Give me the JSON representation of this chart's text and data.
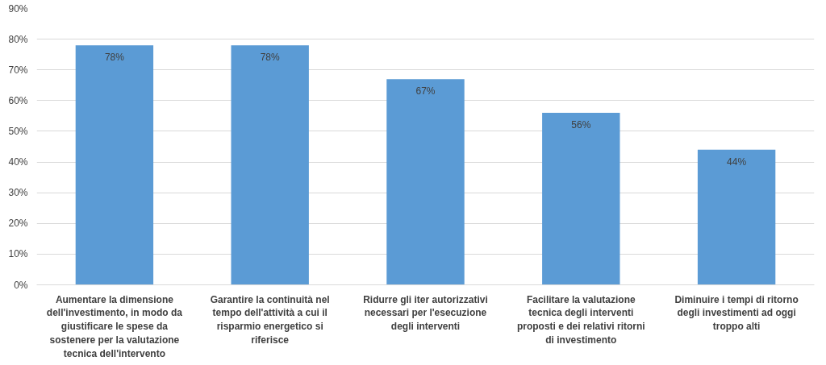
{
  "chart_data": {
    "type": "bar",
    "categories": [
      "Aumentare la dimensione dell'investimento, in modo da giustificare le spese da sostenere per la valutazione tecnica dell'intervento",
      "Garantire la continuità nel tempo dell'attività a cui il risparmio energetico si riferisce",
      "Ridurre gli iter autorizzativi necessari per l'esecuzione degli interventi",
      "Facilitare la valutazione tecnica degli interventi proposti e dei relativi ritorni di investimento",
      "Diminuire i tempi di ritorno degli investimenti ad oggi troppo alti"
    ],
    "values": [
      78,
      78,
      67,
      56,
      44
    ],
    "value_labels": [
      "78%",
      "78%",
      "67%",
      "56%",
      "44%"
    ],
    "color": "#5b9bd5",
    "ylim": [
      0,
      90
    ],
    "yticks": [
      {
        "value": 0,
        "label": "0%"
      },
      {
        "value": 10,
        "label": "10%"
      },
      {
        "value": 20,
        "label": "20%"
      },
      {
        "value": 30,
        "label": "30%"
      },
      {
        "value": 40,
        "label": "40%"
      },
      {
        "value": 50,
        "label": "50%"
      },
      {
        "value": 60,
        "label": "60%"
      },
      {
        "value": 70,
        "label": "70%"
      },
      {
        "value": 80,
        "label": "80%"
      },
      {
        "value": 90,
        "label": "90%"
      }
    ],
    "grid": "y"
  }
}
